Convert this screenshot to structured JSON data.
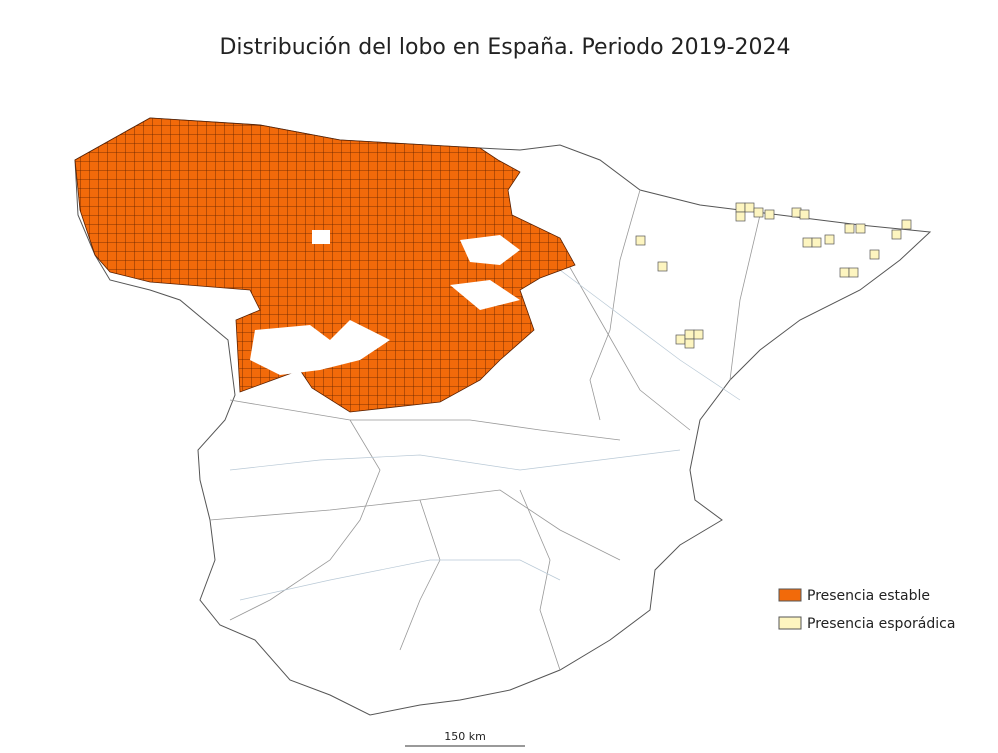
{
  "title": "Distribución del lobo en España. Periodo 2019-2024",
  "legend": {
    "items": [
      {
        "label": "Presencia estable",
        "color": "#f26a0a"
      },
      {
        "label": "Presencia esporádica",
        "color": "#fdf5c0"
      }
    ]
  },
  "scale_bar": {
    "label": "150 km"
  }
}
